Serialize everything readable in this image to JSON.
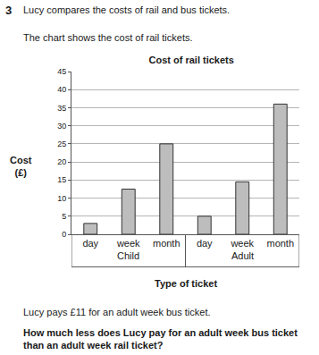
{
  "question_number": "3",
  "intro": "Lucy compares the costs of rail and bus tickets.",
  "chart_intro": "The chart shows the cost of rail tickets.",
  "chart_data": {
    "type": "bar",
    "title": "Cost of rail tickets",
    "x_label": "Type of ticket",
    "y_label": "Cost (£)",
    "categories": [
      "day",
      "week",
      "month",
      "day",
      "week",
      "month"
    ],
    "groups": [
      "Child",
      "Child",
      "Child",
      "Adult",
      "Adult",
      "Adult"
    ],
    "values": [
      3,
      12.5,
      25,
      5,
      14.5,
      36
    ],
    "color": "#bdbdbd",
    "ylim": [
      0,
      45
    ],
    "yticks": [
      0,
      5,
      10,
      15,
      20,
      25,
      30,
      35,
      40,
      45
    ],
    "grid": true
  },
  "note": "Lucy pays £11 for an adult week bus ticket.",
  "question": "How much less does Lucy pay for an adult week bus ticket than an adult week rail ticket?"
}
